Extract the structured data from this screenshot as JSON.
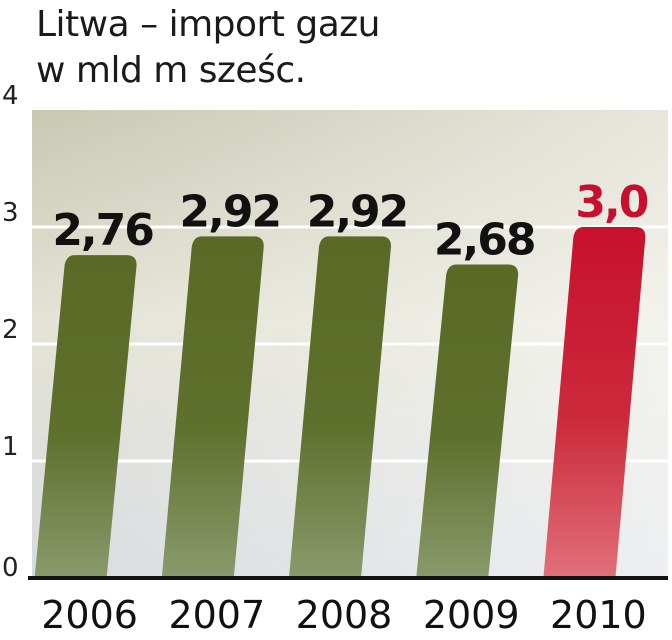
{
  "chart_data": {
    "type": "bar",
    "title_lines": [
      "Litwa – import gazu",
      "w mld m sześc."
    ],
    "categories": [
      "2006",
      "2007",
      "2008",
      "2009",
      "2010"
    ],
    "values": [
      2.76,
      2.92,
      2.92,
      2.68,
      3.0
    ],
    "data_labels": [
      "2,76",
      "2,92",
      "2,92",
      "2,68",
      "3,0"
    ],
    "highlight_index": 4,
    "yticks": [
      "0",
      "1",
      "2",
      "3",
      "4"
    ],
    "ylim": [
      0,
      4
    ],
    "grid": true,
    "colors": {
      "bar": "#5a6a26",
      "bar_light": "#8a9a6c",
      "highlight": "#c8102e",
      "highlight_light": "#e0707a",
      "band_top": "#c9c8b2",
      "band_bottom": "#d8dbe0",
      "label": "#111111",
      "highlight_label": "#c8102e"
    }
  }
}
